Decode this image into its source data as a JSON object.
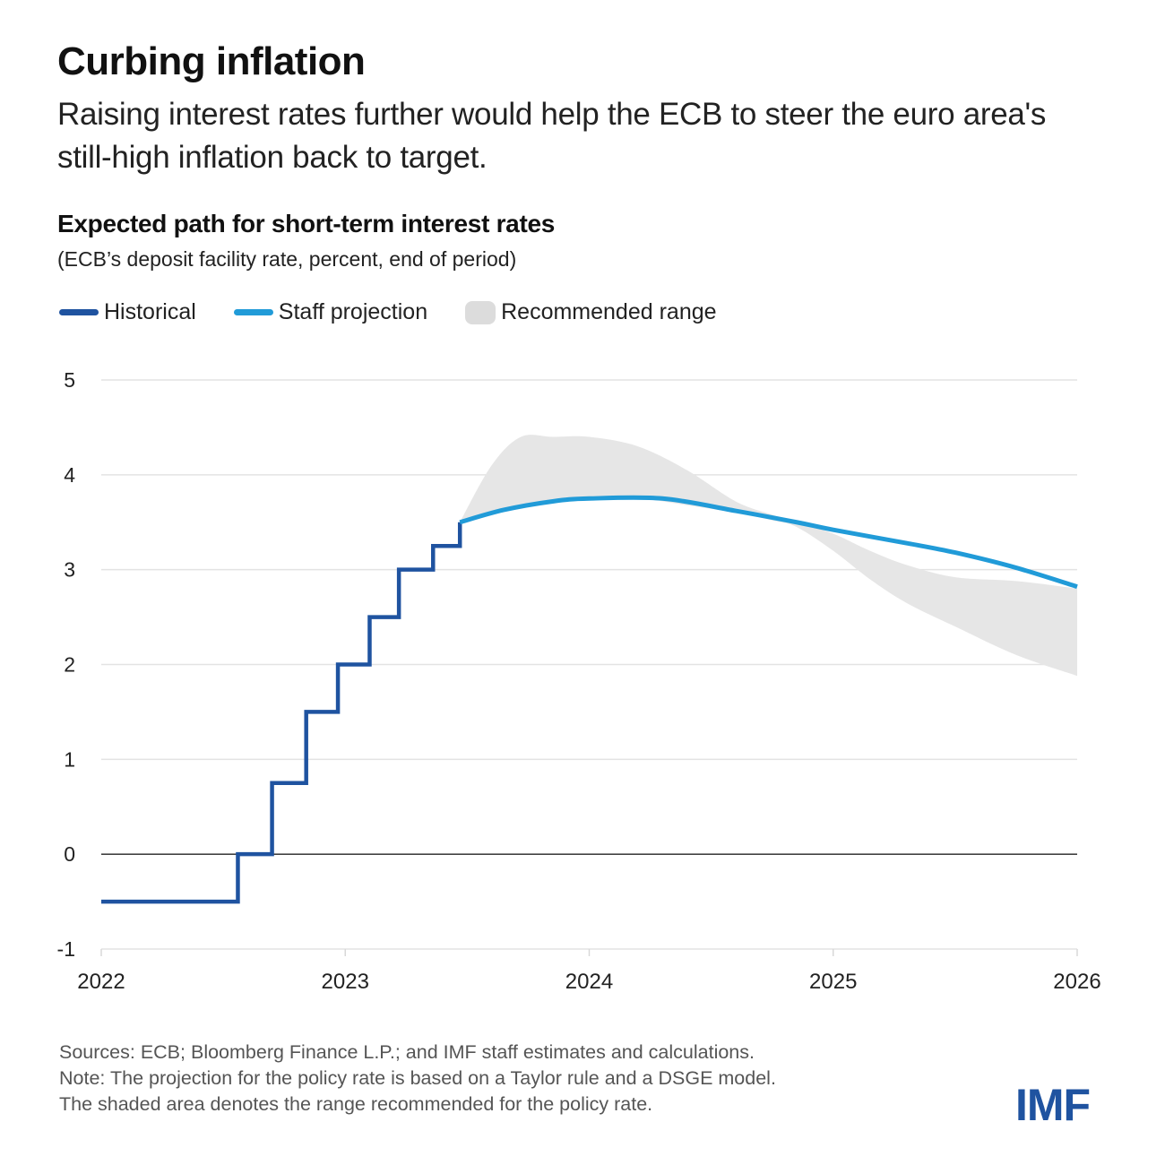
{
  "header": {
    "title": "Curbing inflation",
    "subtitle": "Raising interest rates further would help the ECB to steer the euro area's still-high inflation back to target."
  },
  "chart_data": {
    "type": "line",
    "title": "Expected path for short-term interest rates",
    "subtitle": "(ECB’s deposit facility rate, percent, end of period)",
    "xlabel": "",
    "ylabel": "",
    "xlim": [
      2022,
      2026
    ],
    "ylim": [
      -1,
      5
    ],
    "grid": true,
    "legend_position": "top-left",
    "x_ticks": [
      "2022",
      "2023",
      "2024",
      "2025",
      "2026"
    ],
    "x_tick_values": [
      2022,
      2023,
      2024,
      2025,
      2026
    ],
    "y_ticks": [
      "-1",
      "0",
      "1",
      "2",
      "3",
      "4",
      "5"
    ],
    "y_tick_values": [
      -1,
      0,
      1,
      2,
      3,
      4,
      5
    ],
    "colors": {
      "historical": "#1f53a0",
      "projection": "#219bd8",
      "range": "#e6e6e6",
      "grid": "#e3e3e3",
      "zero_line": "#222222"
    },
    "series": [
      {
        "name": "Historical",
        "style": "step",
        "x": [
          2022.0,
          2022.56,
          2022.56,
          2022.7,
          2022.7,
          2022.84,
          2022.84,
          2022.97,
          2022.97,
          2023.1,
          2023.1,
          2023.22,
          2023.22,
          2023.36,
          2023.36,
          2023.47,
          2023.47
        ],
        "y": [
          -0.5,
          -0.5,
          0.0,
          0.0,
          0.75,
          0.75,
          1.5,
          1.5,
          2.0,
          2.0,
          2.5,
          2.5,
          3.0,
          3.0,
          3.25,
          3.25,
          3.5
        ]
      },
      {
        "name": "Staff projection",
        "style": "smooth",
        "x": [
          2023.47,
          2023.65,
          2023.85,
          2024.0,
          2024.3,
          2024.6,
          2024.85,
          2025.0,
          2025.3,
          2025.5,
          2025.75,
          2026.0
        ],
        "y": [
          3.5,
          3.63,
          3.72,
          3.75,
          3.75,
          3.62,
          3.5,
          3.42,
          3.28,
          3.18,
          3.02,
          2.82
        ]
      },
      {
        "name": "Recommended range",
        "style": "band",
        "x": [
          2023.47,
          2023.6,
          2023.72,
          2023.85,
          2024.0,
          2024.2,
          2024.4,
          2024.6,
          2024.75,
          2024.85,
          2025.0,
          2025.15,
          2025.3,
          2025.5,
          2025.75,
          2026.0
        ],
        "upper": [
          3.5,
          4.1,
          4.4,
          4.4,
          4.4,
          4.3,
          4.05,
          3.72,
          3.58,
          3.5,
          3.38,
          3.2,
          3.05,
          2.92,
          2.88,
          2.8
        ],
        "lower": [
          3.5,
          3.6,
          3.68,
          3.72,
          3.75,
          3.75,
          3.68,
          3.6,
          3.52,
          3.45,
          3.2,
          2.9,
          2.65,
          2.4,
          2.1,
          1.88
        ]
      }
    ]
  },
  "legend": [
    {
      "label": "Historical",
      "kind": "line",
      "color": "#1f53a0"
    },
    {
      "label": "Staff projection",
      "kind": "line",
      "color": "#219bd8"
    },
    {
      "label": "Recommended range",
      "kind": "area",
      "color": "#dcdcdc"
    }
  ],
  "footer": {
    "sources": "Sources: ECB; Bloomberg Finance L.P.; and IMF staff estimates and calculations.",
    "note": "Note: The projection for the policy rate is based on a Taylor rule and a DSGE model.",
    "shaded": "The shaded area denotes the range recommended for the policy rate."
  },
  "logo": {
    "text": "IMF"
  }
}
